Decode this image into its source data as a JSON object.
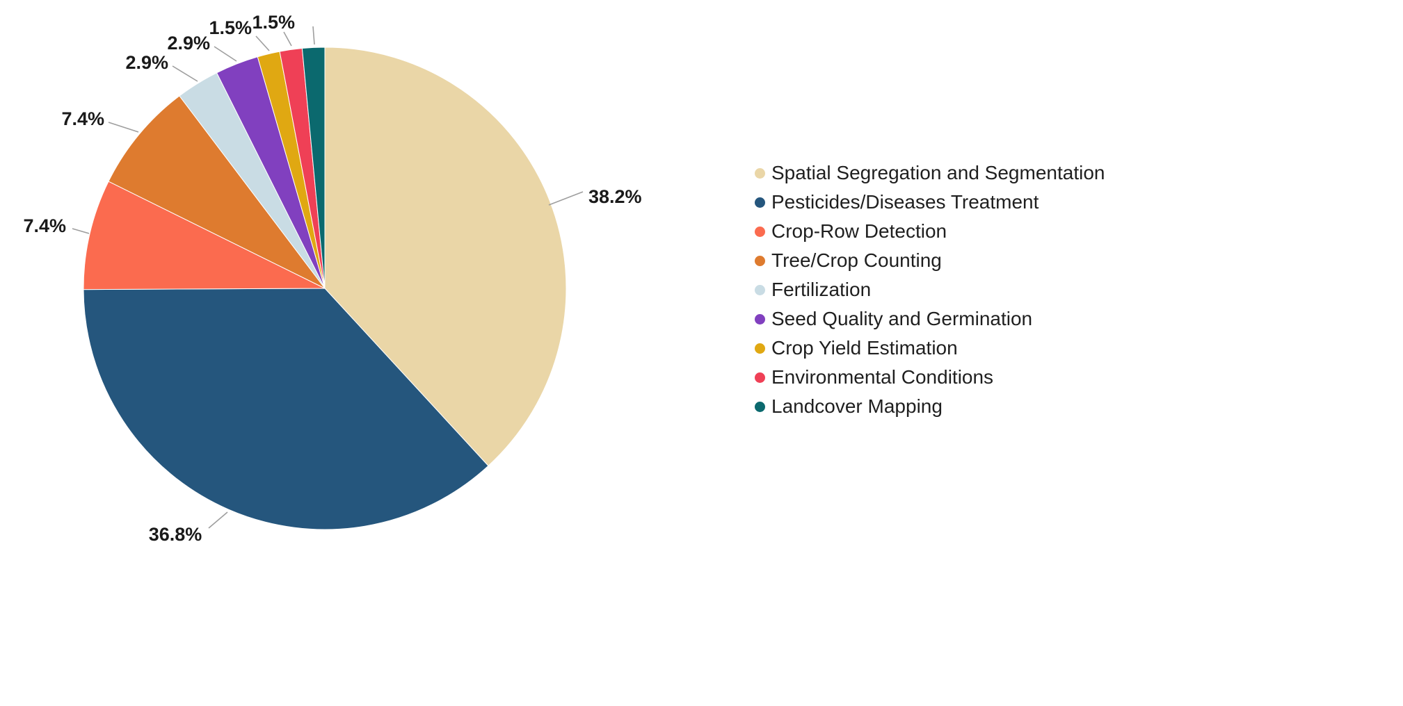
{
  "chart_data": {
    "type": "pie",
    "title": "",
    "legend_position": "right",
    "start_angle_deg": 0,
    "direction": "clockwise",
    "series": [
      {
        "label": "Spatial Segregation and Segmentation",
        "value": 38.2,
        "display": "38.2%",
        "color": "#EAD6A7"
      },
      {
        "label": "Pesticides/Diseases Treatment",
        "value": 36.8,
        "display": "36.8%",
        "color": "#25567D"
      },
      {
        "label": "Crop-Row Detection",
        "value": 7.4,
        "display": "7.4%",
        "color": "#FB6B4F"
      },
      {
        "label": "Tree/Crop Counting",
        "value": 7.4,
        "display": "7.4%",
        "color": "#DE7B2F"
      },
      {
        "label": "Fertilization",
        "value": 2.9,
        "display": "2.9%",
        "color": "#C9DCE4"
      },
      {
        "label": "Seed Quality and Germination",
        "value": 2.9,
        "display": "2.9%",
        "color": "#8140BF"
      },
      {
        "label": "Crop Yield Estimation",
        "value": 1.5,
        "display": "1.5%",
        "color": "#E0A812"
      },
      {
        "label": "Environmental Conditions",
        "value": 1.5,
        "display": "1.5%",
        "color": "#EF4056"
      },
      {
        "label": "Landcover Mapping",
        "value": 1.5,
        "display": "",
        "color": "#0B696E"
      }
    ]
  }
}
